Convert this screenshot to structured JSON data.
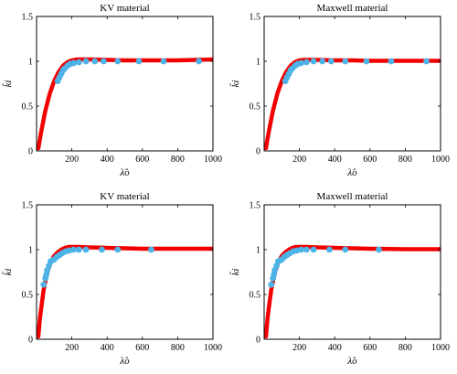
{
  "chart_data": [
    {
      "type": "scatter",
      "title": "KV material",
      "xlabel": "λ̂o",
      "ylabel": "k̂i",
      "xlim": [
        0,
        1000
      ],
      "ylim": [
        0,
        1.5
      ],
      "xticks": [
        200,
        400,
        600,
        800,
        1000
      ],
      "yticks": [
        0,
        0.5,
        1,
        1.5
      ],
      "ytick_labels": [
        "0",
        "0.5",
        "1",
        "1.5"
      ],
      "grid": false,
      "series": [
        {
          "kind": "points",
          "color": "#4db3e6",
          "x": [
            120,
            130,
            140,
            150,
            160,
            175,
            190,
            210,
            240,
            280,
            330,
            380,
            460,
            580,
            720,
            920
          ],
          "y": [
            0.78,
            0.82,
            0.86,
            0.9,
            0.92,
            0.95,
            0.97,
            0.98,
            0.99,
            1.0,
            1.0,
            1.0,
            1.0,
            1.0,
            1.0,
            1.0
          ]
        },
        {
          "kind": "line",
          "color": "#f20000",
          "x": [
            10,
            25,
            50,
            75,
            100,
            125,
            150,
            175,
            200,
            225,
            250,
            300,
            400,
            500,
            600,
            800,
            1000
          ],
          "y": [
            0.03,
            0.2,
            0.45,
            0.64,
            0.78,
            0.88,
            0.95,
            0.99,
            1.01,
            1.02,
            1.02,
            1.02,
            1.015,
            1.01,
            1.01,
            1.01,
            1.02
          ]
        }
      ]
    },
    {
      "type": "scatter",
      "title": "Maxwell material",
      "xlabel": "λ̂o",
      "ylabel": "k̂i",
      "xlim": [
        0,
        1000
      ],
      "ylim": [
        0,
        1.5
      ],
      "xticks": [
        200,
        400,
        600,
        800,
        1000
      ],
      "yticks": [
        0,
        0.5,
        1,
        1.5
      ],
      "ytick_labels": [
        "0",
        "0.5",
        "1",
        "1.5"
      ],
      "grid": false,
      "series": [
        {
          "kind": "points",
          "color": "#4db3e6",
          "x": [
            120,
            130,
            140,
            150,
            160,
            175,
            190,
            210,
            240,
            280,
            330,
            380,
            460,
            580,
            720,
            920
          ],
          "y": [
            0.78,
            0.82,
            0.86,
            0.9,
            0.92,
            0.95,
            0.97,
            0.98,
            0.99,
            1.0,
            1.0,
            1.0,
            1.0,
            1.0,
            1.0,
            1.0
          ]
        },
        {
          "kind": "line",
          "color": "#f20000",
          "x": [
            10,
            25,
            50,
            75,
            100,
            125,
            150,
            175,
            200,
            225,
            250,
            300,
            400,
            500,
            600,
            800,
            1000
          ],
          "y": [
            0.03,
            0.2,
            0.45,
            0.64,
            0.78,
            0.88,
            0.95,
            0.99,
            1.01,
            1.015,
            1.015,
            1.015,
            1.01,
            1.01,
            1.005,
            1.005,
            1.005
          ]
        }
      ]
    },
    {
      "type": "scatter",
      "title": "KV material",
      "xlabel": "λ̂o",
      "ylabel": "k̂i",
      "xlim": [
        0,
        1000
      ],
      "ylim": [
        0,
        1.5
      ],
      "xticks": [
        200,
        400,
        600,
        800,
        1000
      ],
      "yticks": [
        0,
        0.5,
        1,
        1.5
      ],
      "ytick_labels": [
        "0",
        "0.5",
        "1",
        "1.5"
      ],
      "grid": false,
      "series": [
        {
          "kind": "points",
          "color": "#4db3e6",
          "x": [
            40,
            50,
            55,
            60,
            70,
            80,
            90,
            100,
            115,
            130,
            145,
            165,
            185,
            210,
            240,
            280,
            370,
            460,
            650
          ],
          "y": [
            0.61,
            0.68,
            0.72,
            0.77,
            0.82,
            0.87,
            0.88,
            0.89,
            0.92,
            0.94,
            0.96,
            0.98,
            0.99,
            1.0,
            1.0,
            1.0,
            1.0,
            1.0,
            1.0
          ]
        },
        {
          "kind": "line",
          "color": "#f20000",
          "x": [
            10,
            20,
            40,
            60,
            80,
            100,
            120,
            140,
            160,
            180,
            200,
            250,
            300,
            400,
            500,
            600,
            800,
            1000
          ],
          "y": [
            0.03,
            0.25,
            0.55,
            0.74,
            0.86,
            0.93,
            0.97,
            1.0,
            1.02,
            1.03,
            1.03,
            1.03,
            1.025,
            1.02,
            1.015,
            1.01,
            1.01,
            1.01
          ]
        }
      ]
    },
    {
      "type": "scatter",
      "title": "Maxwell material",
      "xlabel": "λ̂o",
      "ylabel": "k̂i",
      "xlim": [
        0,
        1000
      ],
      "ylim": [
        0,
        1.5
      ],
      "xticks": [
        200,
        400,
        600,
        800,
        1000
      ],
      "yticks": [
        0,
        0.5,
        1,
        1.5
      ],
      "ytick_labels": [
        "0",
        "0.5",
        "1",
        "1.5"
      ],
      "grid": false,
      "series": [
        {
          "kind": "points",
          "color": "#4db3e6",
          "x": [
            40,
            50,
            55,
            60,
            70,
            80,
            90,
            100,
            115,
            130,
            145,
            165,
            185,
            210,
            240,
            280,
            370,
            460,
            650
          ],
          "y": [
            0.61,
            0.68,
            0.72,
            0.77,
            0.82,
            0.87,
            0.88,
            0.89,
            0.92,
            0.94,
            0.96,
            0.98,
            0.99,
            1.0,
            1.0,
            1.0,
            1.0,
            1.0,
            1.0
          ]
        },
        {
          "kind": "line",
          "color": "#f20000",
          "x": [
            10,
            20,
            40,
            60,
            80,
            100,
            120,
            140,
            160,
            180,
            200,
            250,
            300,
            400,
            500,
            600,
            800,
            1000
          ],
          "y": [
            0.03,
            0.25,
            0.55,
            0.74,
            0.86,
            0.93,
            0.97,
            1.0,
            1.02,
            1.03,
            1.03,
            1.03,
            1.025,
            1.02,
            1.015,
            1.01,
            1.005,
            1.005
          ]
        }
      ]
    }
  ]
}
